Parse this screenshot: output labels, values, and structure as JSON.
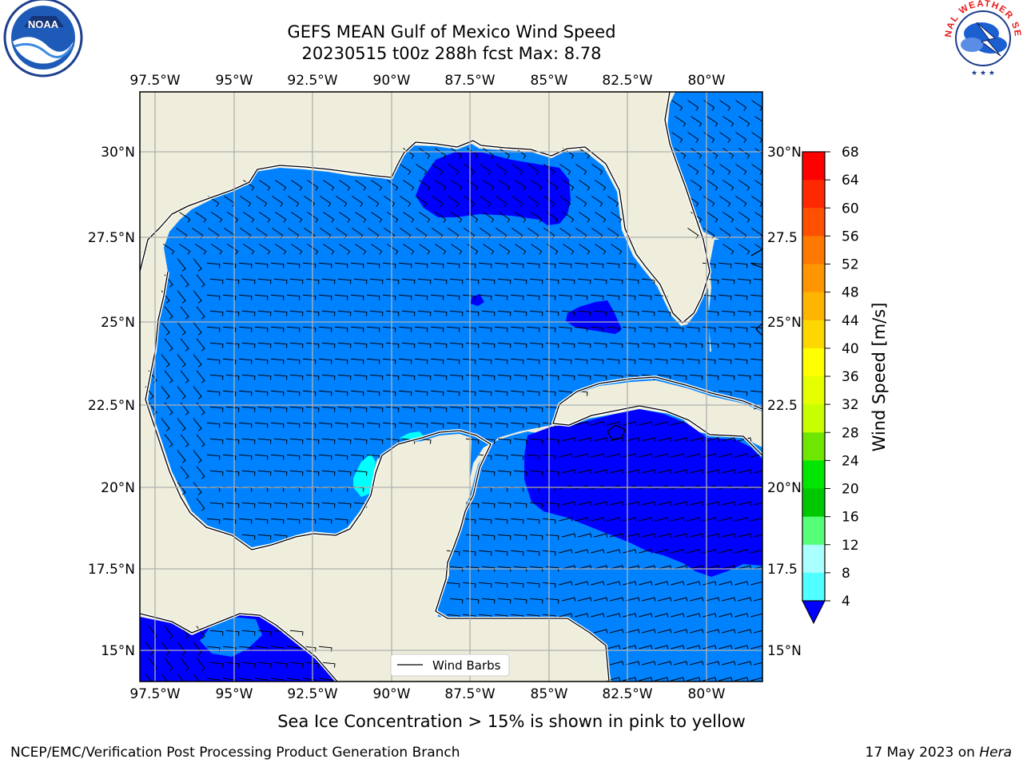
{
  "title_line1": "GEFS MEAN Gulf of Mexico Wind Speed",
  "title_line2": "20230515 t00z 288h fcst   Max: 8.78",
  "logos": {
    "left": "NOAA",
    "right": "NATIONAL WEATHER SERVICE"
  },
  "axes": {
    "lon_ticks": [
      "97.5°W",
      "95°W",
      "92.5°W",
      "90°W",
      "87.5°W",
      "85°W",
      "82.5°W",
      "80°W"
    ],
    "lat_ticks": [
      "30°N",
      "27.5°N",
      "25°N",
      "22.5°N",
      "20°N",
      "17.5°N",
      "15°N"
    ],
    "lat_ticks_right": [
      "30°N",
      "27.5",
      "25°N",
      "22.5",
      "20°N",
      "17.5",
      "15°N"
    ]
  },
  "legend": {
    "wind_barbs_label": "Wind Barbs"
  },
  "colorbar": {
    "label": "Wind Speed [m/s]",
    "ticks": [
      "68",
      "64",
      "60",
      "56",
      "52",
      "48",
      "44",
      "40",
      "36",
      "32",
      "28",
      "24",
      "20",
      "16",
      "12",
      "8",
      "4"
    ],
    "colors": [
      "#ff0000",
      "#ff2800",
      "#ff5000",
      "#ff7800",
      "#ff9600",
      "#ffb400",
      "#ffd700",
      "#ffff00",
      "#e6ff00",
      "#c8ff00",
      "#6ee600",
      "#00e600",
      "#00c800",
      "#55ff78",
      "#aaffff",
      "#50ffff",
      "#00ffff",
      "#00e6ff",
      "#007fff",
      "#0000ff"
    ],
    "extend_color": "#0000ff"
  },
  "colors": {
    "land": "#efeedc",
    "water_4_8": "#0082ff",
    "water_lt4": "#0000ff",
    "water_8_12": "#00ffff"
  },
  "bottom_caption": "Sea Ice Concentration > 15% is shown in pink to yellow",
  "credit": "NCEP/EMC/Verification Post Processing Product Generation Branch",
  "date_text": "17 May 2023 on ",
  "date_host": "Hera"
}
